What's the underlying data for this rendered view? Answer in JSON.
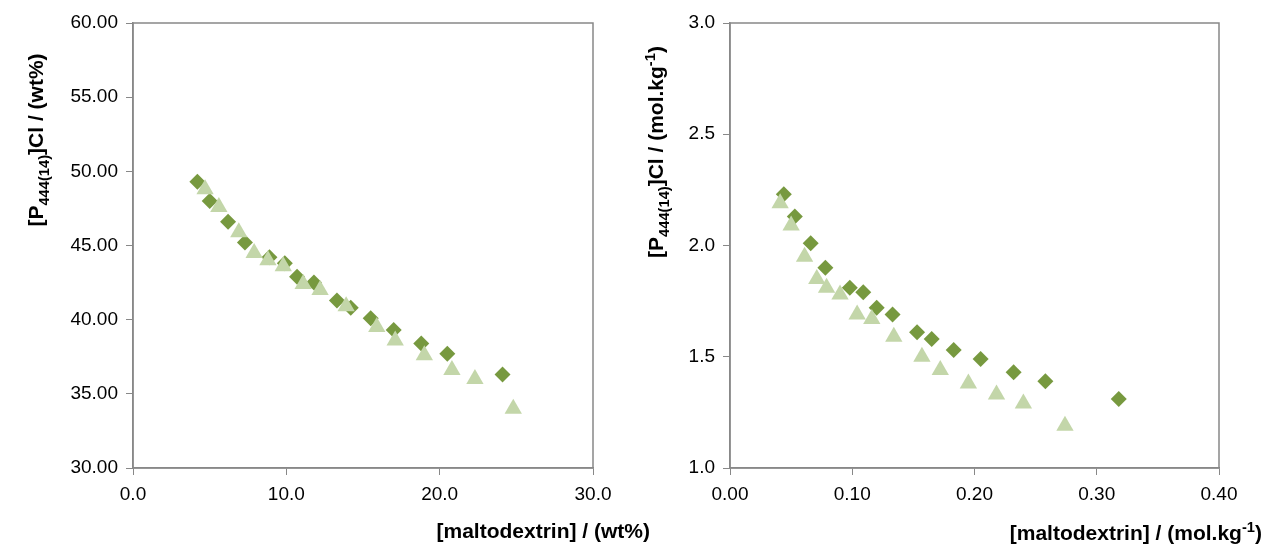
{
  "chart_data": [
    {
      "type": "scatter",
      "xlabel": "[maltodextrin] / (wt%)",
      "ylabel": "[P$_{444(14)}$]Cl / (wt%)",
      "xlim": [
        0,
        30
      ],
      "xticks": [
        {
          "value": 0,
          "label": "0.0"
        },
        {
          "value": 10,
          "label": "10.0"
        },
        {
          "value": 20,
          "label": "20.0"
        },
        {
          "value": 30,
          "label": "30.0"
        }
      ],
      "ylim": [
        30,
        60
      ],
      "yticks": [
        {
          "value": 30,
          "label": "30.00"
        },
        {
          "value": 35,
          "label": "35.00"
        },
        {
          "value": 40,
          "label": "40.00"
        },
        {
          "value": 45,
          "label": "45.00"
        },
        {
          "value": 50,
          "label": "50.00"
        },
        {
          "value": 55,
          "label": "55.00"
        },
        {
          "value": 60,
          "label": "60.00"
        }
      ],
      "grid": false,
      "legend": false,
      "series": [
        {
          "color": "#77993f",
          "marker": "diamond",
          "x": [
            4.2,
            5.0,
            6.2,
            7.3,
            8.9,
            9.9,
            10.7,
            11.8,
            13.3,
            14.2,
            15.5,
            17.0,
            18.8,
            20.5,
            24.1
          ],
          "values": [
            49.3,
            48.0,
            46.6,
            45.2,
            44.2,
            43.8,
            42.9,
            42.5,
            41.3,
            40.8,
            40.1,
            39.3,
            38.4,
            37.7,
            36.3
          ]
        },
        {
          "color": "#c3d6a9",
          "marker": "triangle",
          "x": [
            4.7,
            5.6,
            6.9,
            7.9,
            8.8,
            9.8,
            11.1,
            12.2,
            13.9,
            15.9,
            17.1,
            19.0,
            20.8,
            22.3,
            24.8
          ],
          "values": [
            48.8,
            47.6,
            45.9,
            44.5,
            44.0,
            43.6,
            42.4,
            42.0,
            40.9,
            39.5,
            38.6,
            37.6,
            36.6,
            36.0,
            34.0
          ]
        }
      ]
    },
    {
      "type": "scatter",
      "xlabel": "[maltodextrin] / (mol.kg$^{-1}$)",
      "ylabel": "[P$_{444(14)}$]Cl / (mol.kg$^{-1}$)",
      "xlim": [
        0,
        0.4
      ],
      "xticks": [
        {
          "value": 0,
          "label": "0.00"
        },
        {
          "value": 0.1,
          "label": "0.10"
        },
        {
          "value": 0.2,
          "label": "0.20"
        },
        {
          "value": 0.3,
          "label": "0.30"
        },
        {
          "value": 0.4,
          "label": "0.40"
        }
      ],
      "ylim": [
        1,
        3
      ],
      "yticks": [
        {
          "value": 1,
          "label": "1.0"
        },
        {
          "value": 1.5,
          "label": "1.5"
        },
        {
          "value": 2,
          "label": "2.0"
        },
        {
          "value": 2.5,
          "label": "2.5"
        },
        {
          "value": 3,
          "label": "3.0"
        }
      ],
      "grid": false,
      "legend": false,
      "series": [
        {
          "color": "#77993f",
          "marker": "diamond",
          "x": [
            0.044,
            0.053,
            0.066,
            0.078,
            0.098,
            0.109,
            0.12,
            0.133,
            0.153,
            0.165,
            0.183,
            0.205,
            0.232,
            0.258,
            0.318
          ],
          "values": [
            2.23,
            2.13,
            2.01,
            1.9,
            1.81,
            1.79,
            1.72,
            1.69,
            1.61,
            1.58,
            1.53,
            1.49,
            1.43,
            1.39,
            1.31
          ]
        },
        {
          "color": "#c3d6a9",
          "marker": "triangle",
          "x": [
            0.041,
            0.05,
            0.061,
            0.071,
            0.079,
            0.09,
            0.104,
            0.116,
            0.134,
            0.157,
            0.172,
            0.195,
            0.218,
            0.24,
            0.274
          ],
          "values": [
            2.19,
            2.09,
            1.95,
            1.85,
            1.81,
            1.78,
            1.69,
            1.67,
            1.59,
            1.5,
            1.44,
            1.38,
            1.33,
            1.29,
            1.19
          ]
        }
      ]
    }
  ]
}
